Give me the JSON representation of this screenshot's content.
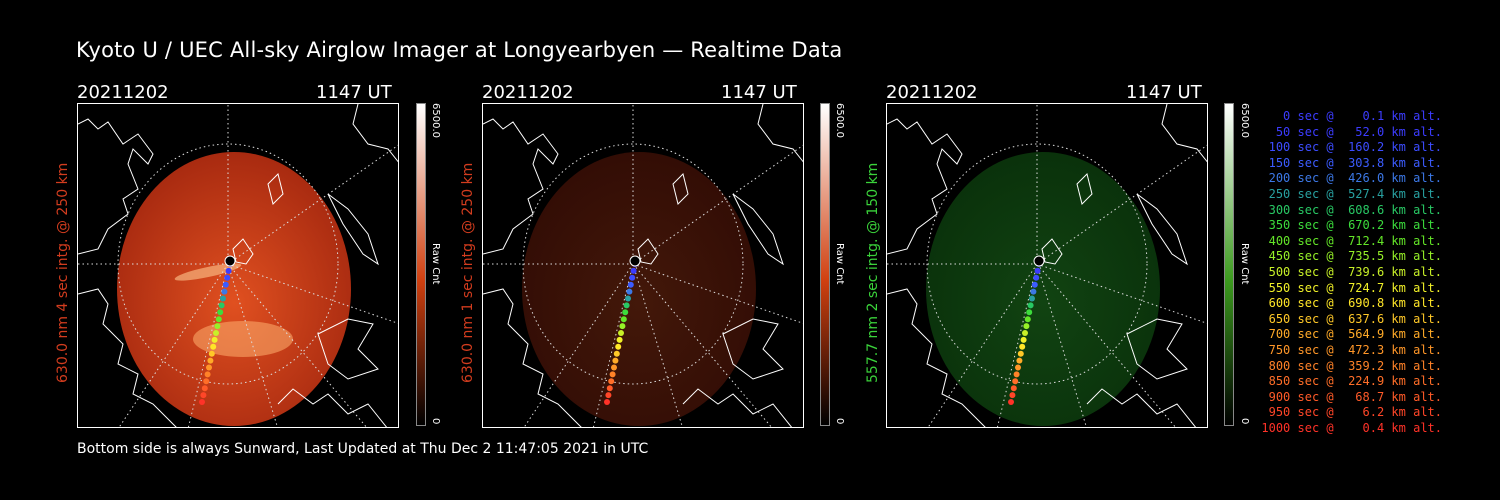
{
  "title": "Kyoto U / UEC All-sky Airglow Imager at Longyearbyen — Realtime Data",
  "footer": "Bottom side is always Sunward, Last Updated at Thu Dec  2 11:47:05 2021 in UTC",
  "panels": [
    {
      "date": "20211202",
      "time": "1147 UT",
      "ylabel": "630.0 nm  4 sec intg. @ 250 km",
      "label_color": "#d23c1e",
      "colorbar": {
        "max": "6500.0",
        "unit": "Raw Cnt",
        "min": "0",
        "top_color": "#ffffff",
        "mid_color": "#d04010",
        "bottom_color": "#000000"
      },
      "image": {
        "tone": "red",
        "intensity": 1.0
      }
    },
    {
      "date": "20211202",
      "time": "1147 UT",
      "ylabel": "630.0 nm  1 sec intg. @ 250 km",
      "label_color": "#d23c1e",
      "colorbar": {
        "max": "6500.0",
        "unit": "Raw Cnt",
        "min": "0",
        "top_color": "#ffffff",
        "mid_color": "#d04010",
        "bottom_color": "#000000"
      },
      "image": {
        "tone": "red",
        "intensity": 0.3
      }
    },
    {
      "date": "20211202",
      "time": "1147 UT",
      "ylabel": "557.7 nm  2 sec intg. @ 150 km",
      "label_color": "#3ad23a",
      "colorbar": {
        "max": "6500.0",
        "unit": "Raw Cnt",
        "min": "0",
        "top_color": "#ffffff",
        "mid_color": "#3c9a1e",
        "bottom_color": "#000000"
      },
      "image": {
        "tone": "green",
        "intensity": 0.55
      }
    }
  ],
  "legend": [
    {
      "text": "   0 sec @    0.1 km alt.",
      "color": "#3c3cff"
    },
    {
      "text": "  50 sec @   52.0 km alt.",
      "color": "#3c3cff"
    },
    {
      "text": " 100 sec @  160.2 km alt.",
      "color": "#3c4cff"
    },
    {
      "text": " 150 sec @  303.8 km alt.",
      "color": "#3c5cff"
    },
    {
      "text": " 200 sec @  426.0 km alt.",
      "color": "#3c78e6"
    },
    {
      "text": " 250 sec @  527.4 km alt.",
      "color": "#28a0a0"
    },
    {
      "text": " 300 sec @  608.6 km alt.",
      "color": "#28c864"
    },
    {
      "text": " 350 sec @  670.2 km alt.",
      "color": "#3cdc3c"
    },
    {
      "text": " 400 sec @  712.4 km alt.",
      "color": "#64e628"
    },
    {
      "text": " 450 sec @  735.5 km alt.",
      "color": "#96f028"
    },
    {
      "text": " 500 sec @  739.6 km alt.",
      "color": "#c8f028"
    },
    {
      "text": " 550 sec @  724.7 km alt.",
      "color": "#f0f028"
    },
    {
      "text": " 600 sec @  690.8 km alt.",
      "color": "#ffe628"
    },
    {
      "text": " 650 sec @  637.6 km alt.",
      "color": "#ffc828"
    },
    {
      "text": " 700 sec @  564.9 km alt.",
      "color": "#ffaa28"
    },
    {
      "text": " 750 sec @  472.3 km alt.",
      "color": "#ff9628"
    },
    {
      "text": " 800 sec @  359.2 km alt.",
      "color": "#ff8228"
    },
    {
      "text": " 850 sec @  224.9 km alt.",
      "color": "#ff6e28"
    },
    {
      "text": " 900 sec @   68.7 km alt.",
      "color": "#ff5a28"
    },
    {
      "text": " 950 sec @    6.2 km alt.",
      "color": "#ff4628"
    },
    {
      "text": "1000 sec @    0.4 km alt.",
      "color": "#ff3228"
    }
  ]
}
